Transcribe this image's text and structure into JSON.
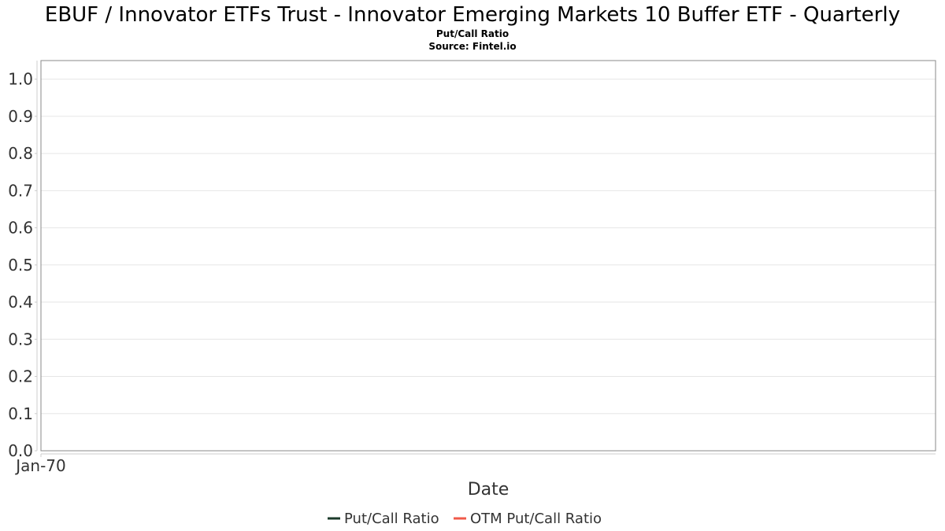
{
  "chart_data": {
    "type": "line",
    "title": "EBUF / Innovator ETFs Trust - Innovator Emerging Markets 10 Buffer ETF - Quarterly",
    "subtitle": "Put/Call Ratio",
    "source": "Source: Fintel.io",
    "xlabel": "Date",
    "ylabel": "",
    "x_ticks": [
      "Jan-70"
    ],
    "y_ticks": [
      "0.0",
      "0.1",
      "0.2",
      "0.3",
      "0.4",
      "0.5",
      "0.6",
      "0.7",
      "0.8",
      "0.9",
      "1.0"
    ],
    "ylim": [
      0,
      1.05
    ],
    "grid": true,
    "legend_position": "bottom-center",
    "series": [
      {
        "name": "Put/Call Ratio",
        "color": "#1b3a2a",
        "values": []
      },
      {
        "name": "OTM Put/Call Ratio",
        "color": "#f05a4a",
        "values": []
      }
    ]
  }
}
